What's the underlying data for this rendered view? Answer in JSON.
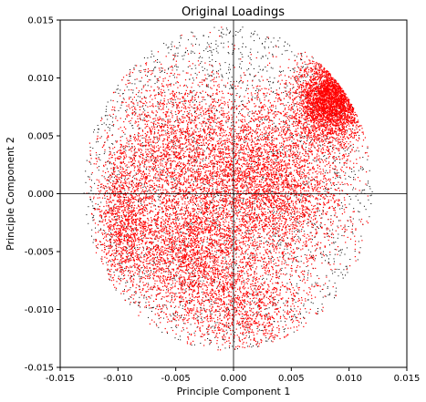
{
  "chart_data": {
    "type": "scatter",
    "title": "Original Loadings",
    "xlabel": "Principle Component 1",
    "ylabel": "Principle Component 2",
    "xlim": [
      -0.015,
      0.015
    ],
    "ylim": [
      -0.015,
      0.015
    ],
    "xticks": [
      "-0.015",
      "-0.010",
      "-0.005",
      "0.000",
      "0.005",
      "0.010",
      "0.015"
    ],
    "yticks": [
      "-0.015",
      "-0.010",
      "-0.005",
      "0.000",
      "0.005",
      "0.010",
      "0.015"
    ],
    "xtick_values": [
      -0.015,
      -0.01,
      -0.005,
      0.0,
      0.005,
      0.01,
      0.015
    ],
    "ytick_values": [
      -0.015,
      -0.01,
      -0.005,
      0.0,
      0.005,
      0.01,
      0.015
    ],
    "reference_lines": {
      "x": 0,
      "y": 0
    },
    "grid": false,
    "legend": "none",
    "series": [
      {
        "color": "#000000",
        "marker": "point",
        "region": {
          "center": [
            -0.0005,
            0.0005
          ],
          "radius_x": 0.0125,
          "radius_y": 0.014
        }
      },
      {
        "color": "#ff0000",
        "marker": "point",
        "clusters": [
          {
            "center": [
              0.0085,
              0.0082
            ],
            "spread": [
              0.0015,
              0.0017
            ],
            "weight": 0.22
          },
          {
            "center": [
              0.003,
              0.001
            ],
            "spread": [
              0.0035,
              0.004
            ],
            "weight": 0.3
          },
          {
            "center": [
              -0.004,
              -0.005
            ],
            "spread": [
              0.003,
              0.003
            ],
            "weight": 0.18
          },
          {
            "center": [
              -0.005,
              0.004
            ],
            "spread": [
              0.003,
              0.0035
            ],
            "weight": 0.15
          },
          {
            "center": [
              -0.0095,
              -0.002
            ],
            "spread": [
              0.0012,
              0.003
            ],
            "weight": 0.08
          },
          {
            "center": [
              0.001,
              -0.01
            ],
            "spread": [
              0.003,
              0.002
            ],
            "weight": 0.07
          }
        ]
      }
    ]
  }
}
